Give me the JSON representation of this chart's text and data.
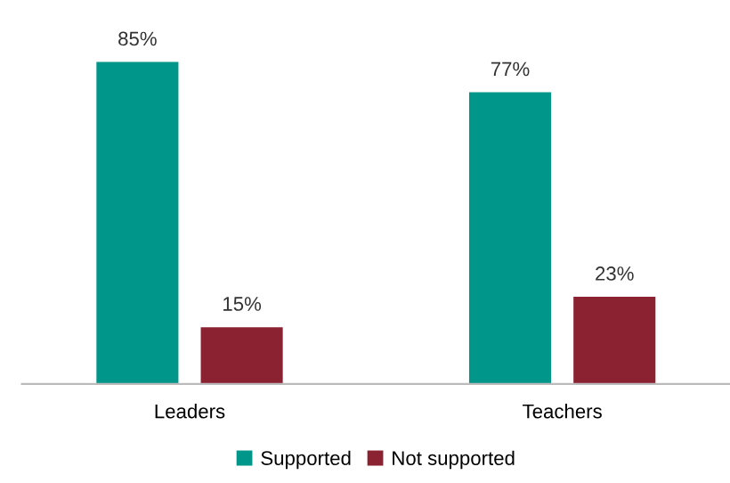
{
  "chart_data": {
    "type": "bar",
    "categories": [
      "Leaders",
      "Teachers"
    ],
    "series": [
      {
        "name": "Supported",
        "color": "#00968a",
        "values": [
          85,
          77
        ],
        "value_labels": [
          "85%",
          "77%"
        ]
      },
      {
        "name": "Not supported",
        "color": "#8b2232",
        "values": [
          15,
          23
        ],
        "value_labels": [
          "15%",
          "23%"
        ]
      }
    ],
    "legend": "bottom",
    "grid": false
  }
}
